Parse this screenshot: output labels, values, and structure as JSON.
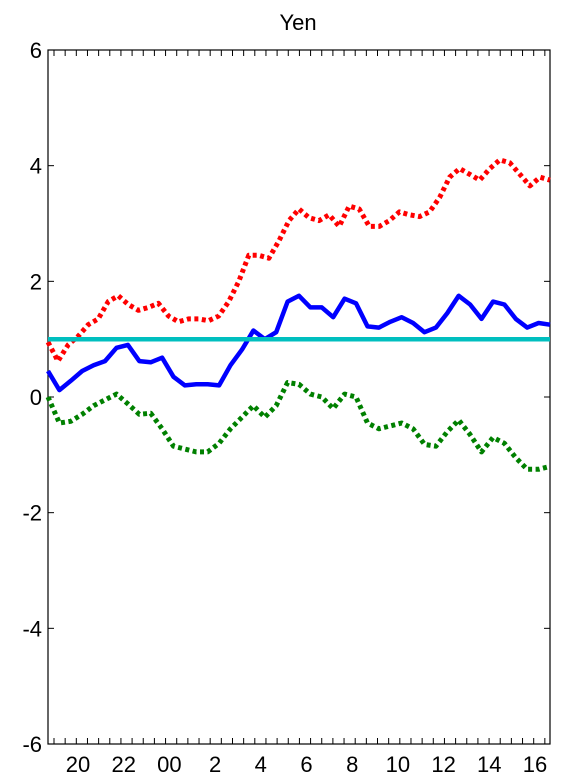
{
  "chart_data": {
    "type": "line",
    "title": "Yen",
    "xlabel": "",
    "ylabel": "",
    "xlim": [
      19.2,
      16.6
    ],
    "ylim": [
      -6,
      6
    ],
    "x_tick_labels": [
      "20",
      "22",
      "00",
      "2",
      "4",
      "6",
      "8",
      "10",
      "12",
      "14",
      "16"
    ],
    "y_tick_labels": [
      "-6",
      "-4",
      "-2",
      "0",
      "2",
      "4",
      "6"
    ],
    "y_ticks": [
      -6,
      -4,
      -2,
      0,
      2,
      4,
      6
    ],
    "grid": false,
    "legend": "none",
    "n_points": 60,
    "series": [
      {
        "style": "dotted",
        "color": "#ff0000",
        "values": [
          0.95,
          0.62,
          0.9,
          1.05,
          1.25,
          1.35,
          1.65,
          1.75,
          1.6,
          1.5,
          1.55,
          1.62,
          1.4,
          1.3,
          1.35,
          1.35,
          1.32,
          1.4,
          1.65,
          2.0,
          2.45,
          2.45,
          2.4,
          2.7,
          3.05,
          3.25,
          3.1,
          3.05,
          3.15,
          2.95,
          3.3,
          3.25,
          2.95,
          2.95,
          3.05,
          3.2,
          3.15,
          3.12,
          3.2,
          3.45,
          3.8,
          3.95,
          3.85,
          3.75,
          3.95,
          4.1,
          4.05,
          3.85,
          3.65,
          3.8,
          3.75
        ]
      },
      {
        "style": "solid",
        "color": "#0000ff",
        "values": [
          0.45,
          0.12,
          0.28,
          0.45,
          0.55,
          0.62,
          0.85,
          0.9,
          0.62,
          0.6,
          0.68,
          0.35,
          0.2,
          0.22,
          0.22,
          0.2,
          0.55,
          0.82,
          1.15,
          1.0,
          1.12,
          1.65,
          1.75,
          1.55,
          1.55,
          1.38,
          1.7,
          1.62,
          1.22,
          1.2,
          1.3,
          1.38,
          1.28,
          1.12,
          1.2,
          1.45,
          1.75,
          1.6,
          1.35,
          1.65,
          1.6,
          1.35,
          1.2,
          1.28,
          1.25
        ]
      },
      {
        "style": "solid",
        "color": "#00bfbf",
        "values": [
          1.0,
          1.0
        ]
      },
      {
        "style": "dotted",
        "color": "#008000",
        "values": [
          0.0,
          -0.45,
          -0.42,
          -0.3,
          -0.15,
          -0.05,
          0.05,
          -0.12,
          -0.3,
          -0.28,
          -0.55,
          -0.85,
          -0.9,
          -0.95,
          -0.95,
          -0.8,
          -0.55,
          -0.35,
          -0.15,
          -0.35,
          -0.15,
          0.25,
          0.22,
          0.05,
          0.0,
          -0.2,
          0.05,
          0.0,
          -0.45,
          -0.55,
          -0.5,
          -0.45,
          -0.55,
          -0.82,
          -0.85,
          -0.6,
          -0.4,
          -0.65,
          -0.95,
          -0.7,
          -0.8,
          -1.05,
          -1.25,
          -1.25,
          -1.2
        ]
      }
    ]
  }
}
